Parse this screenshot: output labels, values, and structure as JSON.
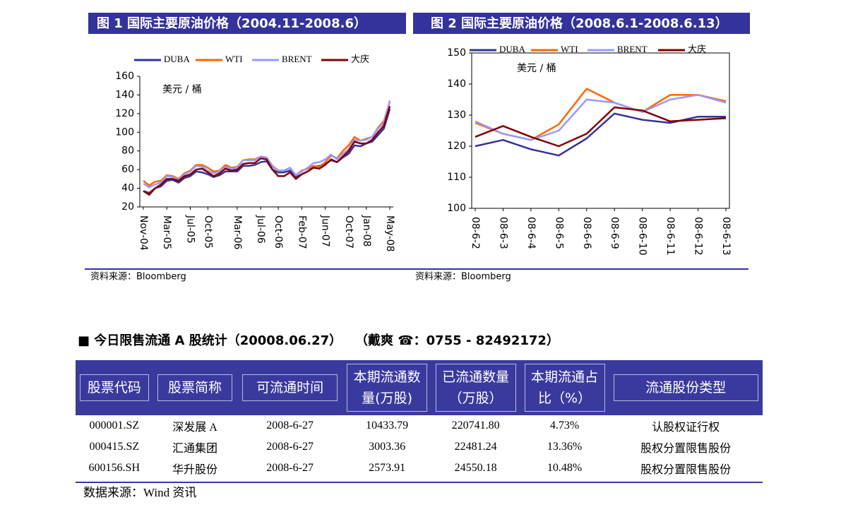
{
  "chart_data": [
    {
      "type": "line",
      "title": "图 1 国际主要原油价格（2004.11-2008.6）",
      "unit_label": "美元 / 桶",
      "source": "资料来源：Bloomberg",
      "categories": [
        "Nov-04",
        null,
        null,
        null,
        "Mar-05",
        null,
        null,
        null,
        "Jul-05",
        null,
        null,
        "Oct-05",
        null,
        null,
        null,
        null,
        "Mar-06",
        null,
        null,
        null,
        "Jul-06",
        null,
        null,
        "Oct-06",
        null,
        null,
        null,
        "Feb-07",
        null,
        null,
        null,
        "Jun-07",
        null,
        null,
        null,
        "Oct-07",
        null,
        null,
        "Jan-08",
        null,
        null,
        null,
        "May-08"
      ],
      "series": [
        {
          "name": "DUBA",
          "color": "#333399",
          "values": [
            37,
            35,
            40,
            42,
            48,
            49,
            46,
            51,
            53,
            58,
            57,
            55,
            52,
            54,
            58,
            58,
            58,
            64,
            64,
            65,
            68,
            69,
            60,
            57,
            57,
            59,
            52,
            55,
            58,
            63,
            64,
            66,
            70,
            68,
            73,
            77,
            86,
            85,
            88,
            90,
            97,
            104,
            125
          ]
        },
        {
          "name": "WTI",
          "color": "#ff6600",
          "values": [
            48,
            43,
            47,
            48,
            54,
            53,
            50,
            56,
            59,
            65,
            65,
            62,
            58,
            59,
            65,
            62,
            63,
            70,
            71,
            71,
            74,
            73,
            64,
            59,
            59,
            62,
            54,
            59,
            61,
            64,
            63,
            68,
            75,
            72,
            80,
            86,
            95,
            91,
            93,
            95,
            105,
            112,
            133
          ]
        },
        {
          "name": "BRENT",
          "color": "#9999ff",
          "values": [
            45,
            41,
            44,
            46,
            53,
            52,
            49,
            55,
            58,
            64,
            63,
            59,
            56,
            58,
            63,
            61,
            62,
            70,
            70,
            70,
            74,
            73,
            63,
            59,
            59,
            62,
            54,
            58,
            62,
            67,
            68,
            71,
            76,
            71,
            77,
            82,
            92,
            91,
            92,
            95,
            104,
            110,
            134
          ]
        },
        {
          "name": "大庆",
          "color": "#800000",
          "values": [
            37,
            33,
            40,
            44,
            50,
            50,
            48,
            53,
            55,
            60,
            61,
            57,
            53,
            56,
            61,
            59,
            60,
            66,
            67,
            67,
            72,
            71,
            60,
            53,
            53,
            57,
            50,
            55,
            58,
            62,
            61,
            65,
            71,
            68,
            74,
            80,
            90,
            88,
            88,
            92,
            100,
            107,
            128
          ]
        }
      ],
      "ylim": [
        20,
        160
      ],
      "yticks": [
        20,
        40,
        60,
        80,
        100,
        120,
        140,
        160
      ],
      "frame": false
    },
    {
      "type": "line",
      "title": "图 2 国际主要原油价格（2008.6.1-2008.6.13）",
      "unit_label": "美元 / 桶",
      "source": "资料来源：Bloomberg",
      "categories": [
        "08-6-2",
        "08-6-3",
        "08-6-4",
        "08-6-5",
        "08-6-6",
        "08-6-9",
        "08-6-10",
        "08-6-11",
        "08-6-12",
        "08-6-13"
      ],
      "series": [
        {
          "name": "DUBA",
          "color": "#333399",
          "values": [
            120,
            122,
            119,
            117,
            122.5,
            130.5,
            128.5,
            127.5,
            129.5,
            129.5
          ]
        },
        {
          "name": "WTI",
          "color": "#ff6600",
          "values": [
            127.5,
            124,
            122,
            127,
            138.5,
            134,
            131,
            136.5,
            136.5,
            134.5
          ]
        },
        {
          "name": "BRENT",
          "color": "#9999ff",
          "values": [
            128,
            124,
            122,
            125,
            135,
            134,
            131,
            135,
            136.5,
            134
          ]
        },
        {
          "name": "大庆",
          "color": "#800000",
          "values": [
            123,
            126.5,
            123,
            120,
            124,
            132.5,
            131.5,
            128,
            128.5,
            129
          ]
        }
      ],
      "ylim": [
        100,
        150
      ],
      "yticks": [
        100,
        110,
        120,
        130,
        140,
        150
      ],
      "frame": true
    }
  ],
  "table": {
    "title": "■ 今日限售流通 A 股统计（20008.06.27）",
    "contact": "（戴爽 ☎：0755 - 82492172）",
    "columns": [
      "股票代码",
      "股票简称",
      "可流通时间",
      "本期流通数量(万股)",
      "已流通数量（万股）",
      "本期流通占比（%）",
      "流通股份类型"
    ],
    "rows": [
      [
        "000001.SZ",
        "深发展 A",
        "2008-6-27",
        "10433.79",
        "220741.80",
        "4.73%",
        "认股权证行权"
      ],
      [
        "000415.SZ",
        "汇通集团",
        "2008-6-27",
        "3003.36",
        "22481.24",
        "13.36%",
        "股权分置限售股份"
      ],
      [
        "600156.SH",
        "华升股份",
        "2008-6-27",
        "2573.91",
        "24550.18",
        "10.48%",
        "股权分置限售股份"
      ]
    ],
    "source": "数据来源：Wind 资讯"
  }
}
